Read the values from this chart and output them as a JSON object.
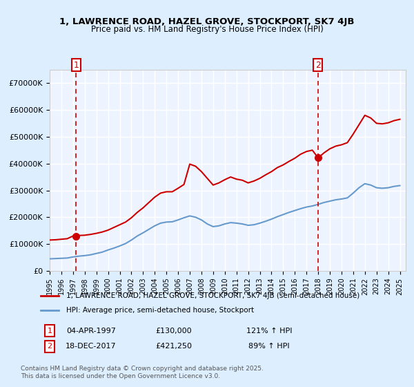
{
  "title_line1": "1, LAWRENCE ROAD, HAZEL GROVE, STOCKPORT, SK7 4JB",
  "title_line2": "Price paid vs. HM Land Registry's House Price Index (HPI)",
  "legend_label1": "1, LAWRENCE ROAD, HAZEL GROVE, STOCKPORT, SK7 4JB (semi-detached house)",
  "legend_label2": "HPI: Average price, semi-detached house, Stockport",
  "annotation1": {
    "num": "1",
    "date": "04-APR-1997",
    "price": "£130,000",
    "hpi": "121% ↑ HPI"
  },
  "annotation2": {
    "num": "2",
    "date": "18-DEC-2017",
    "price": "£421,250",
    "hpi": "89% ↑ HPI"
  },
  "footnote": "Contains HM Land Registry data © Crown copyright and database right 2025.\nThis data is licensed under the Open Government Licence v3.0.",
  "price_color": "#cc0000",
  "hpi_color": "#6699cc",
  "background_color": "#ddeeff",
  "plot_bg_color": "#eef4ff",
  "grid_color": "#ffffff",
  "ylim": [
    0,
    750000
  ],
  "yticks": [
    0,
    100000,
    200000,
    300000,
    400000,
    500000,
    600000,
    700000
  ],
  "marker1_x": 1997.27,
  "marker1_y": 130000,
  "marker2_x": 2017.97,
  "marker2_y": 421250,
  "vline1_x": 1997.27,
  "vline2_x": 2017.97,
  "hpi_years": [
    1995,
    1995.5,
    1996,
    1996.5,
    1997,
    1997.5,
    1998,
    1998.5,
    1999,
    1999.5,
    2000,
    2000.5,
    2001,
    2001.5,
    2002,
    2002.5,
    2003,
    2003.5,
    2004,
    2004.5,
    2005,
    2005.5,
    2006,
    2006.5,
    2007,
    2007.5,
    2008,
    2008.5,
    2009,
    2009.5,
    2010,
    2010.5,
    2011,
    2011.5,
    2012,
    2012.5,
    2013,
    2013.5,
    2014,
    2014.5,
    2015,
    2015.5,
    2016,
    2016.5,
    2017,
    2017.5,
    2018,
    2018.5,
    2019,
    2019.5,
    2020,
    2020.5,
    2021,
    2021.5,
    2022,
    2022.5,
    2023,
    2023.5,
    2024,
    2024.5,
    2025
  ],
  "hpi_values": [
    45000,
    46000,
    47000,
    48000,
    52000,
    55000,
    57000,
    60000,
    65000,
    70000,
    78000,
    85000,
    93000,
    102000,
    115000,
    130000,
    142000,
    155000,
    168000,
    178000,
    182000,
    183000,
    190000,
    198000,
    205000,
    200000,
    190000,
    175000,
    165000,
    168000,
    175000,
    180000,
    178000,
    175000,
    170000,
    172000,
    178000,
    185000,
    193000,
    202000,
    210000,
    218000,
    225000,
    232000,
    238000,
    242000,
    248000,
    255000,
    260000,
    265000,
    268000,
    272000,
    290000,
    310000,
    325000,
    320000,
    310000,
    308000,
    310000,
    315000,
    318000
  ],
  "price_years": [
    1995,
    1995.5,
    1996,
    1996.5,
    1997,
    1997.5,
    1998,
    1998.5,
    1999,
    1999.5,
    2000,
    2000.5,
    2001,
    2001.5,
    2002,
    2002.5,
    2003,
    2003.5,
    2004,
    2004.5,
    2005,
    2005.5,
    2006,
    2006.5,
    2007,
    2007.5,
    2008,
    2008.5,
    2009,
    2009.5,
    2010,
    2010.5,
    2011,
    2011.5,
    2012,
    2012.5,
    2013,
    2013.5,
    2014,
    2014.5,
    2015,
    2015.5,
    2016,
    2016.5,
    2017,
    2017.5,
    2018,
    2018.5,
    2019,
    2019.5,
    2020,
    2020.5,
    2021,
    2021.5,
    2022,
    2022.5,
    2023,
    2023.5,
    2024,
    2024.5,
    2025
  ],
  "price_values": [
    115000,
    116000,
    118000,
    120000,
    130000,
    132000,
    133000,
    136000,
    140000,
    145000,
    152000,
    162000,
    172000,
    182000,
    198000,
    218000,
    235000,
    255000,
    275000,
    290000,
    295000,
    295000,
    308000,
    322000,
    398000,
    390000,
    370000,
    345000,
    320000,
    328000,
    340000,
    350000,
    342000,
    338000,
    328000,
    335000,
    345000,
    358000,
    370000,
    385000,
    395000,
    408000,
    420000,
    435000,
    445000,
    450000,
    421250,
    440000,
    455000,
    465000,
    470000,
    478000,
    510000,
    545000,
    580000,
    570000,
    550000,
    548000,
    552000,
    560000,
    565000
  ],
  "xlim": [
    1995,
    2025.5
  ],
  "xticks": [
    1995,
    1996,
    1997,
    1998,
    1999,
    2000,
    2001,
    2002,
    2003,
    2004,
    2005,
    2006,
    2007,
    2008,
    2009,
    2010,
    2011,
    2012,
    2013,
    2014,
    2015,
    2016,
    2017,
    2018,
    2019,
    2020,
    2021,
    2022,
    2023,
    2024,
    2025
  ]
}
